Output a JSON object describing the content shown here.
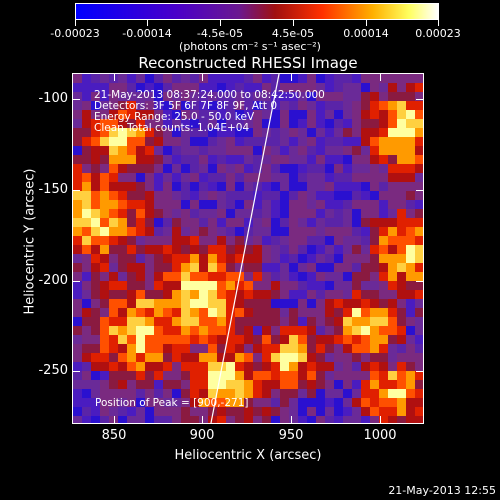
{
  "colorbar": {
    "tick_labels": [
      "-0.00023",
      "-0.00014",
      "-4.5e-05",
      "4.5e-05",
      "0.00014",
      "0.00023"
    ],
    "units": "(photons cm⁻² s⁻¹ asec⁻²)",
    "colors": [
      "#0000ff",
      "#4a00c8",
      "#7a2090",
      "#b02020",
      "#ff4000",
      "#ffb000",
      "#ffff80",
      "#ffffff"
    ]
  },
  "plot": {
    "title": "Reconstructed RHESSI Image",
    "annotations": [
      "21-May-2013 08:37:24.000 to 08:42:50.000",
      "Detectors: 3F 5F 6F 7F 8F 9F, Att 0",
      "Energy Range: 25.0 - 50.0 keV",
      "Clean     Total counts: 1.04E+04"
    ],
    "peak_text": "Position of Peak = [900,-271]",
    "x_label": "Heliocentric X (arcsec)",
    "y_label": "Heliocentric Y (arcsec)",
    "x_ticks": [
      "850",
      "900",
      "950",
      "1000"
    ],
    "y_ticks": [
      "-100",
      "-150",
      "-200",
      "-250"
    ]
  },
  "footer": {
    "date": "21-May-2013 12:55"
  }
}
